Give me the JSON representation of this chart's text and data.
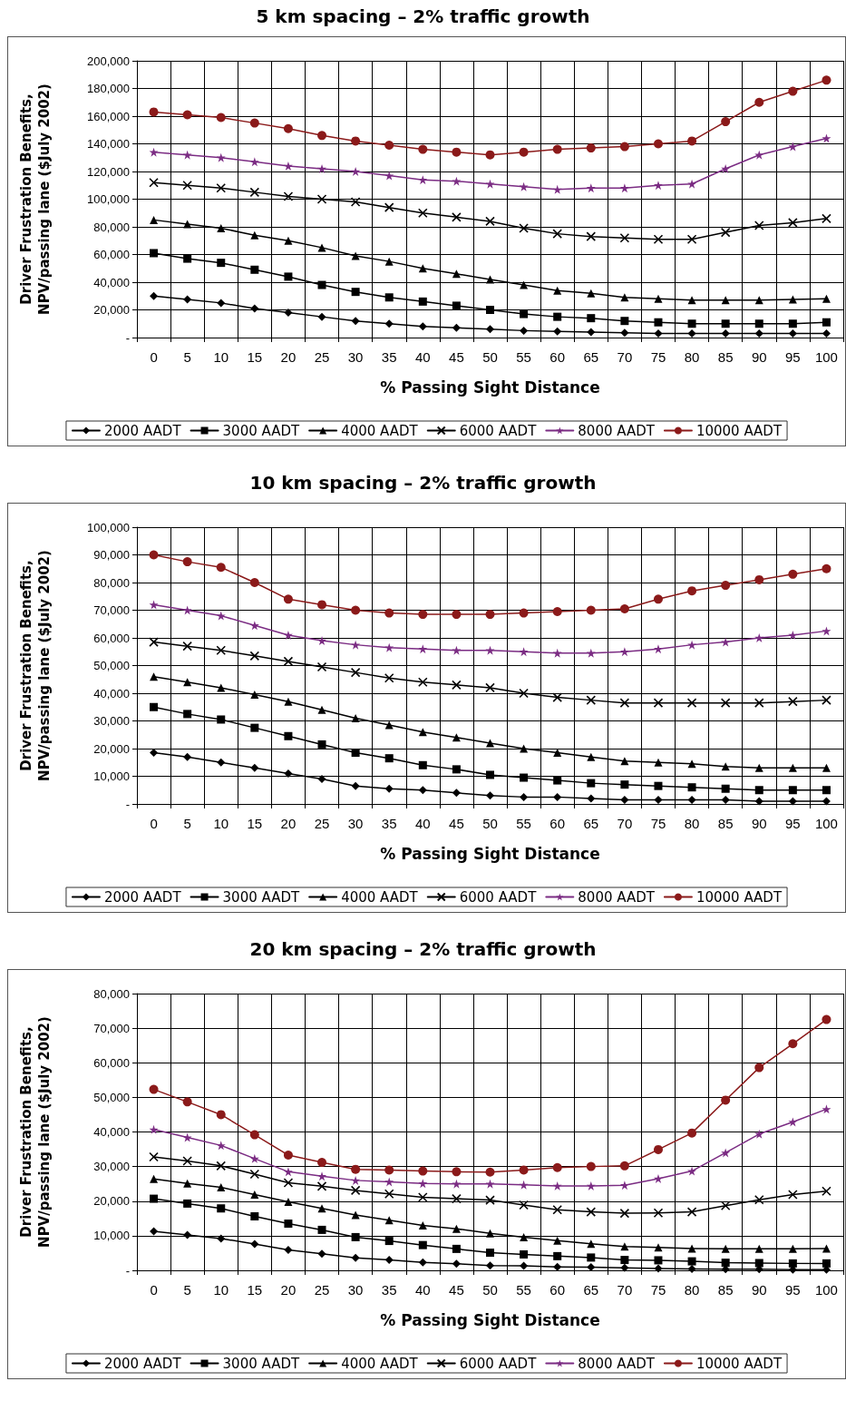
{
  "chart_data": [
    {
      "type": "line",
      "title": "5 km spacing – 2% traffic growth",
      "xlabel": "% Passing Sight Distance",
      "ylabel": "Driver Frustration Benefits,\nNPV/passing lane ($July 2002)",
      "categories": [
        "0",
        "5",
        "10",
        "15",
        "20",
        "25",
        "30",
        "35",
        "40",
        "45",
        "50",
        "55",
        "60",
        "65",
        "70",
        "75",
        "80",
        "85",
        "90",
        "95",
        "100"
      ],
      "ylim": [
        0,
        200000
      ],
      "yticks": [
        {
          "value": 0,
          "label": "-"
        },
        {
          "value": 20000,
          "label": "20,000"
        },
        {
          "value": 40000,
          "label": "40,000"
        },
        {
          "value": 60000,
          "label": "60,000"
        },
        {
          "value": 80000,
          "label": "80,000"
        },
        {
          "value": 100000,
          "label": "100,000"
        },
        {
          "value": 120000,
          "label": "120,000"
        },
        {
          "value": 140000,
          "label": "140,000"
        },
        {
          "value": 160000,
          "label": "160,000"
        },
        {
          "value": 180000,
          "label": "180,000"
        },
        {
          "value": 200000,
          "label": "200,000"
        }
      ],
      "grid": true,
      "legend": "bottom",
      "line_style": "solid",
      "series": [
        {
          "name": "2000 AADT",
          "color": "#000000",
          "marker": "diamond",
          "values": [
            30000,
            27500,
            25000,
            21000,
            18000,
            15000,
            12000,
            10000,
            8000,
            7000,
            6000,
            5000,
            4500,
            4000,
            3500,
            3000,
            3000,
            3000,
            3000,
            3000,
            3000
          ]
        },
        {
          "name": "3000 AADT",
          "color": "#000000",
          "marker": "square",
          "values": [
            61000,
            57000,
            54000,
            49000,
            44000,
            38000,
            33000,
            29000,
            26000,
            23000,
            20000,
            17000,
            15000,
            14000,
            12000,
            11000,
            10000,
            10000,
            10000,
            10000,
            11000
          ]
        },
        {
          "name": "4000 AADT",
          "color": "#000000",
          "marker": "triangle",
          "values": [
            85000,
            82000,
            79000,
            74000,
            70000,
            65000,
            59000,
            55000,
            50000,
            46000,
            42000,
            38000,
            34000,
            32000,
            29000,
            28000,
            27000,
            27000,
            27000,
            27500,
            28000
          ]
        },
        {
          "name": "6000 AADT",
          "color": "#000000",
          "marker": "cross",
          "values": [
            112000,
            110000,
            108000,
            105000,
            102000,
            100000,
            98000,
            94000,
            90000,
            87000,
            84000,
            79000,
            75000,
            73000,
            72000,
            71000,
            71000,
            76000,
            81000,
            83000,
            86000
          ]
        },
        {
          "name": "8000 AADT",
          "color": "#7b2c83",
          "marker": "star",
          "values": [
            134000,
            132000,
            130000,
            127000,
            124000,
            122000,
            120000,
            117000,
            114000,
            113000,
            111000,
            109000,
            107000,
            108000,
            108000,
            110000,
            111000,
            122000,
            132000,
            138000,
            144000
          ]
        },
        {
          "name": "10000 AADT",
          "color": "#8b1a1a",
          "marker": "circle",
          "values": [
            163000,
            161000,
            159000,
            155000,
            151000,
            146000,
            142000,
            139000,
            136000,
            134000,
            132000,
            134000,
            136000,
            137000,
            138000,
            140000,
            142000,
            156000,
            170000,
            178000,
            186000
          ]
        }
      ]
    },
    {
      "type": "line",
      "title": "10 km spacing – 2% traffic growth",
      "xlabel": "% Passing Sight Distance",
      "ylabel": "Driver Frustration Benefits,\nNPV/passing lane ($July 2002)",
      "categories": [
        "0",
        "5",
        "10",
        "15",
        "20",
        "25",
        "30",
        "35",
        "40",
        "45",
        "50",
        "55",
        "60",
        "65",
        "70",
        "75",
        "80",
        "85",
        "90",
        "95",
        "100"
      ],
      "ylim": [
        0,
        100000
      ],
      "yticks": [
        {
          "value": 0,
          "label": "-"
        },
        {
          "value": 10000,
          "label": "10,000"
        },
        {
          "value": 20000,
          "label": "20,000"
        },
        {
          "value": 30000,
          "label": "30,000"
        },
        {
          "value": 40000,
          "label": "40,000"
        },
        {
          "value": 50000,
          "label": "50,000"
        },
        {
          "value": 60000,
          "label": "60,000"
        },
        {
          "value": 70000,
          "label": "70,000"
        },
        {
          "value": 80000,
          "label": "80,000"
        },
        {
          "value": 90000,
          "label": "90,000"
        },
        {
          "value": 100000,
          "label": "100,000"
        }
      ],
      "grid": true,
      "legend": "bottom",
      "line_style": "solid",
      "series": [
        {
          "name": "2000 AADT",
          "color": "#000000",
          "marker": "diamond",
          "values": [
            18500,
            17000,
            15000,
            13000,
            11000,
            9000,
            6500,
            5500,
            5000,
            4000,
            3000,
            2500,
            2500,
            2000,
            1500,
            1500,
            1500,
            1500,
            1000,
            1000,
            1000
          ]
        },
        {
          "name": "3000 AADT",
          "color": "#000000",
          "marker": "square",
          "values": [
            35000,
            32500,
            30500,
            27500,
            24500,
            21500,
            18500,
            16500,
            14000,
            12500,
            10500,
            9500,
            8500,
            7500,
            7000,
            6500,
            6000,
            5500,
            5000,
            5000,
            5000
          ]
        },
        {
          "name": "4000 AADT",
          "color": "#000000",
          "marker": "triangle",
          "values": [
            46000,
            44000,
            42000,
            39500,
            37000,
            34000,
            31000,
            28500,
            26000,
            24000,
            22000,
            20000,
            18500,
            17000,
            15500,
            15000,
            14500,
            13500,
            13000,
            13000,
            13000
          ]
        },
        {
          "name": "6000 AADT",
          "color": "#000000",
          "marker": "cross",
          "values": [
            58500,
            57000,
            55500,
            53500,
            51500,
            49500,
            47500,
            45500,
            44000,
            43000,
            42000,
            40000,
            38500,
            37500,
            36500,
            36500,
            36500,
            36500,
            36500,
            37000,
            37500
          ]
        },
        {
          "name": "8000 AADT",
          "color": "#7b2c83",
          "marker": "star",
          "values": [
            72000,
            70000,
            68000,
            64500,
            61000,
            59000,
            57500,
            56500,
            56000,
            55500,
            55500,
            55000,
            54500,
            54500,
            55000,
            56000,
            57500,
            58500,
            60000,
            61000,
            62500
          ]
        },
        {
          "name": "10000 AADT",
          "color": "#8b1a1a",
          "marker": "circle",
          "values": [
            90000,
            87500,
            85500,
            80000,
            74000,
            72000,
            70000,
            69000,
            68500,
            68500,
            68500,
            69000,
            69500,
            70000,
            70500,
            74000,
            77000,
            79000,
            81000,
            83000,
            85000
          ]
        }
      ]
    },
    {
      "type": "line",
      "title": "20 km spacing – 2% traffic growth",
      "xlabel": "% Passing Sight Distance",
      "ylabel": "Driver Frustration Benefits,\nNPV/passing lane ($July 2002)",
      "categories": [
        "0",
        "5",
        "10",
        "15",
        "20",
        "25",
        "30",
        "35",
        "40",
        "45",
        "50",
        "55",
        "60",
        "65",
        "70",
        "75",
        "80",
        "85",
        "90",
        "95",
        "100"
      ],
      "ylim": [
        0,
        80000
      ],
      "yticks": [
        {
          "value": 0,
          "label": "-"
        },
        {
          "value": 10000,
          "label": "10,000"
        },
        {
          "value": 20000,
          "label": "20,000"
        },
        {
          "value": 30000,
          "label": "30,000"
        },
        {
          "value": 40000,
          "label": "40,000"
        },
        {
          "value": 50000,
          "label": "50,000"
        },
        {
          "value": 60000,
          "label": "60,000"
        },
        {
          "value": 70000,
          "label": "70,000"
        },
        {
          "value": 80000,
          "label": "80,000"
        }
      ],
      "grid": true,
      "legend": "bottom",
      "line_style": "solid",
      "series": [
        {
          "name": "2000 AADT",
          "color": "#000000",
          "marker": "diamond",
          "values": [
            11300,
            10200,
            9200,
            7600,
            5900,
            4800,
            3600,
            3000,
            2300,
            1900,
            1400,
            1300,
            1000,
            900,
            700,
            500,
            400,
            300,
            300,
            200,
            200
          ]
        },
        {
          "name": "3000 AADT",
          "color": "#000000",
          "marker": "square",
          "values": [
            20700,
            19300,
            17900,
            15600,
            13500,
            11700,
            9600,
            8500,
            7300,
            6200,
            5100,
            4600,
            4100,
            3700,
            3000,
            2900,
            2600,
            2200,
            2100,
            2000,
            2000
          ]
        },
        {
          "name": "4000 AADT",
          "color": "#000000",
          "marker": "triangle",
          "values": [
            26400,
            25100,
            24000,
            21900,
            19800,
            17900,
            16000,
            14500,
            13000,
            12000,
            10700,
            9600,
            8600,
            7700,
            6900,
            6600,
            6300,
            6200,
            6200,
            6200,
            6300
          ]
        },
        {
          "name": "6000 AADT",
          "color": "#000000",
          "marker": "cross",
          "values": [
            32800,
            31600,
            30200,
            27800,
            25300,
            24300,
            23100,
            22100,
            21100,
            20700,
            20300,
            18900,
            17500,
            16900,
            16500,
            16600,
            16900,
            18700,
            20400,
            21900,
            22900
          ]
        },
        {
          "name": "8000 AADT",
          "color": "#7b2c83",
          "marker": "star",
          "values": [
            40700,
            38400,
            36100,
            32300,
            28500,
            27200,
            26000,
            25600,
            25100,
            25000,
            25000,
            24700,
            24400,
            24400,
            24600,
            26500,
            28700,
            34000,
            39400,
            42900,
            46600
          ]
        },
        {
          "name": "10000 AADT",
          "color": "#8b1a1a",
          "marker": "circle",
          "values": [
            52300,
            48700,
            45000,
            39200,
            33300,
            31200,
            29200,
            29000,
            28700,
            28500,
            28400,
            29000,
            29700,
            30000,
            30200,
            34900,
            39700,
            49200,
            58600,
            65500,
            72500
          ]
        }
      ]
    }
  ]
}
